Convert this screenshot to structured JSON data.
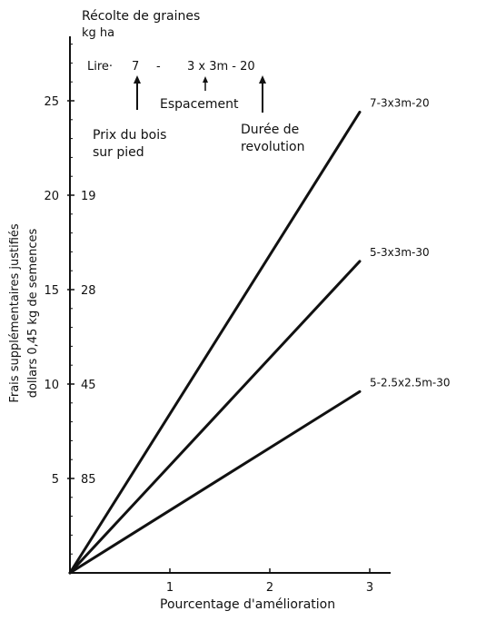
{
  "chart_data": {
    "type": "line",
    "xlabel": "Pourcentage d'amélioration",
    "ylabel_line1": "Frais supplémentaires justifiés",
    "ylabel_line2": "dollars 0,45 kg de semences",
    "xlim": [
      0,
      3.25
    ],
    "ylim": [
      0,
      28.5
    ],
    "x_ticks": [
      1,
      2,
      3
    ],
    "y_ticks": [
      5,
      10,
      15,
      20,
      25
    ],
    "secondary_y_ticks": [
      {
        "y": 5,
        "label": "85"
      },
      {
        "y": 10,
        "label": "45"
      },
      {
        "y": 15,
        "label": "28"
      },
      {
        "y": 20,
        "label": "19"
      }
    ],
    "secondary_axis_title_line1": "Récolte de graines",
    "secondary_axis_title_line2": "kg ha",
    "key": {
      "lire": "Lire·",
      "num": "7",
      "dash": "-",
      "spacing_code": "3 x 3m - 20",
      "espacement": "Espacement",
      "prix_line1": "Prix du bois",
      "prix_line2": "sur pied",
      "duree_line1": "Durée de",
      "duree_line2": "revolution"
    },
    "series": [
      {
        "name": "7-3x3m-20",
        "x": [
          0,
          2.9
        ],
        "y": [
          0,
          24.4
        ]
      },
      {
        "name": "5-3x3m-30",
        "x": [
          0,
          2.9
        ],
        "y": [
          0,
          16.5
        ]
      },
      {
        "name": "5-2.5x2.5m-30",
        "x": [
          0,
          2.9
        ],
        "y": [
          0,
          9.6
        ]
      }
    ],
    "grid": false
  }
}
